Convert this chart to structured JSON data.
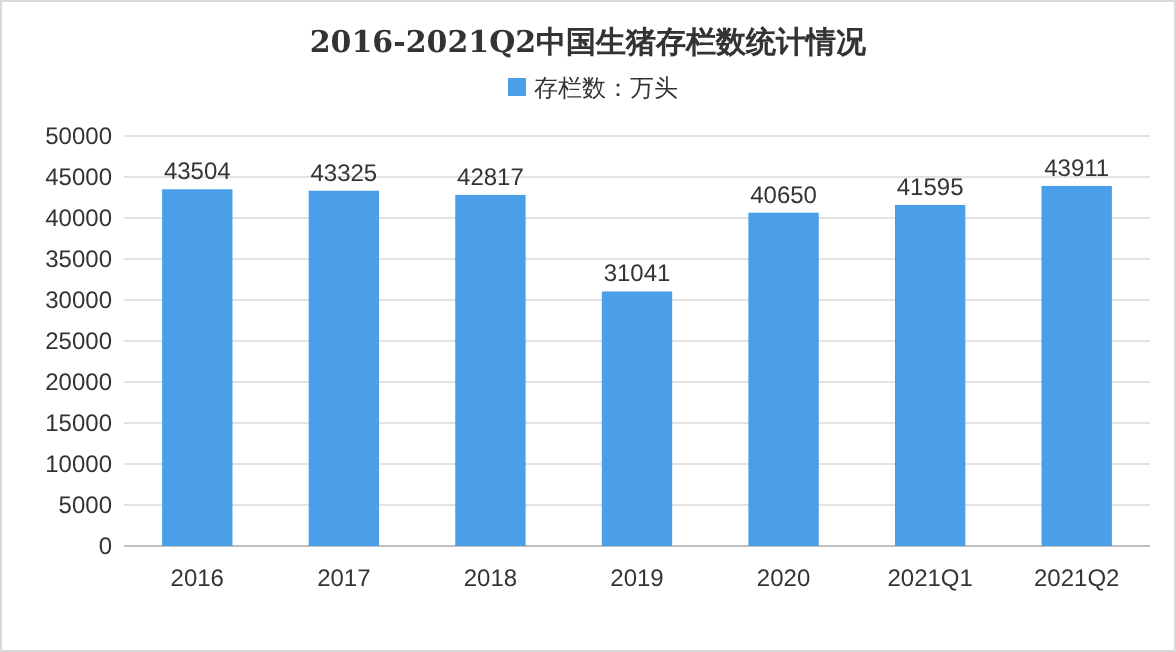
{
  "chart_data": {
    "type": "bar",
    "title": "2016-2021Q2中国生猪存栏数统计情况",
    "categories": [
      "2016",
      "2017",
      "2018",
      "2019",
      "2020",
      "2021Q1",
      "2021Q2"
    ],
    "series": [
      {
        "name": "存栏数：万头",
        "color": "#4a9fe8",
        "values": [
          43504,
          43325,
          42817,
          31041,
          40650,
          41595,
          43911
        ]
      }
    ],
    "ylim": [
      0,
      50000
    ],
    "yticks": [
      0,
      5000,
      10000,
      15000,
      20000,
      25000,
      30000,
      35000,
      40000,
      45000,
      50000
    ],
    "grid": "y",
    "legend": "top",
    "data_labels": true
  }
}
